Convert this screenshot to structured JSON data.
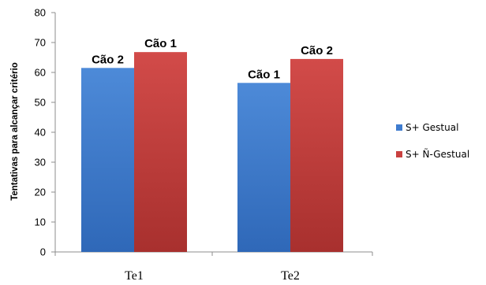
{
  "chart_data": {
    "type": "bar",
    "title": "",
    "xlabel": "",
    "ylabel": "Tentativas para alcançar critério",
    "categories": [
      "Te1",
      "Te2"
    ],
    "ylim": [
      0,
      80
    ],
    "yticks": [
      0,
      10,
      20,
      30,
      40,
      50,
      60,
      70,
      80
    ],
    "grid": false,
    "legend_position": "right",
    "series": [
      {
        "name": "S+ Gestual",
        "color": "#3f7ccf",
        "values": [
          61.5,
          56.5
        ],
        "labels": [
          "Cão 2",
          "Cão 1"
        ]
      },
      {
        "name": "S+ Ñ-Gestual",
        "color": "#c94140",
        "values": [
          66.8,
          64.5
        ],
        "labels": [
          "Cão 1",
          "Cão 2"
        ]
      }
    ]
  }
}
